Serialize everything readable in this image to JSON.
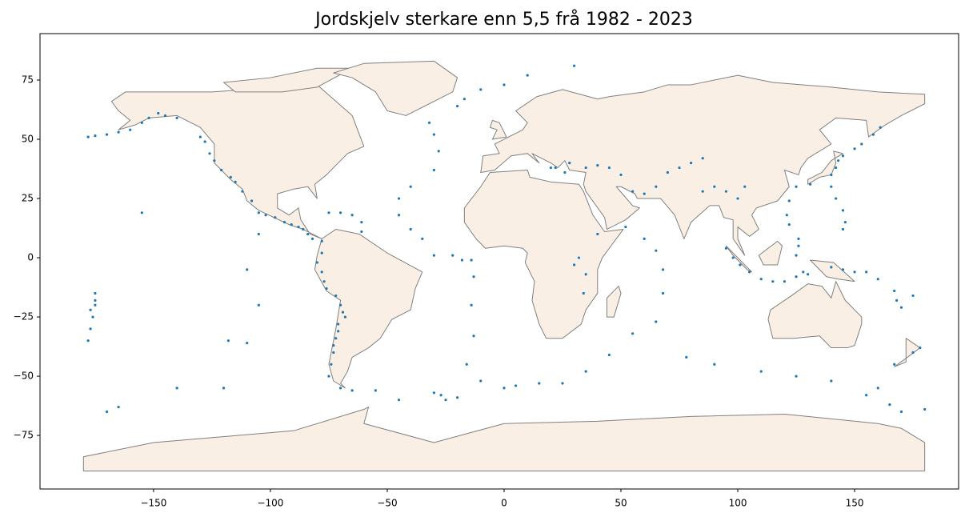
{
  "chart_data": {
    "type": "scatter",
    "title": "Jordskjelv sterkare enn 5,5 frå 1982 - 2023",
    "color": "#1f77b4",
    "xlim": [
      -198.6,
      194.5
    ],
    "ylim": [
      -97.6,
      94.6
    ],
    "xticks": [
      {
        "value": -150,
        "label": "−150"
      },
      {
        "value": -100,
        "label": "−100"
      },
      {
        "value": -50,
        "label": "−50"
      },
      0,
      50,
      100,
      150
    ],
    "yticks": [
      {
        "value": -75,
        "label": "−75"
      },
      {
        "value": -50,
        "label": "−50"
      },
      {
        "value": -25,
        "label": "−25"
      },
      0,
      25,
      50,
      75
    ],
    "x": [
      -178,
      -175,
      -170,
      -165,
      -160,
      -155,
      -152,
      -148,
      -145,
      -140,
      -130,
      -128,
      -126,
      -124,
      -121,
      -117,
      -115,
      -112,
      -108,
      -105,
      -102,
      -98,
      -94,
      -91,
      -88,
      -86,
      -84,
      -82,
      -78,
      -75,
      -70,
      -65,
      -61,
      -61,
      -78,
      -80,
      -78,
      -77,
      -76,
      -72,
      -70,
      -69,
      -68,
      -71,
      -71,
      -72,
      -73,
      -73,
      -74,
      -75,
      -70,
      -65,
      -55,
      -45,
      -30,
      -27,
      -25,
      -20,
      -18,
      -14,
      -22,
      -30,
      -13,
      -14,
      -13,
      -16,
      -10,
      0,
      5,
      -35,
      -40,
      -45,
      -45,
      -40,
      -30,
      -28,
      -30,
      -32,
      -20,
      -17,
      -10,
      0,
      10,
      30,
      15,
      25,
      35,
      45,
      55,
      65,
      78,
      90,
      110,
      125,
      140,
      155,
      165,
      180,
      68,
      68,
      65,
      60,
      52,
      20,
      22,
      26,
      28,
      35,
      40,
      45,
      50,
      55,
      60,
      65,
      70,
      75,
      80,
      85,
      90,
      95,
      100,
      103,
      85,
      30,
      35,
      34,
      32,
      40,
      95,
      98,
      101,
      105,
      110,
      115,
      120,
      125,
      128,
      130,
      125,
      126,
      126,
      122,
      121,
      122,
      125,
      131,
      140,
      142,
      143,
      145,
      150,
      153,
      158,
      161,
      140,
      142,
      145,
      146,
      145,
      140,
      145,
      150,
      155,
      160,
      167,
      168,
      170,
      175,
      -175,
      -175,
      -176,
      -177,
      -178,
      178,
      175,
      167,
      160,
      170,
      -170,
      -155,
      -140,
      -120,
      -110,
      -105,
      -110,
      -105,
      -118,
      -165,
      -175,
      -177
    ],
    "y": [
      51,
      51.5,
      52,
      53,
      54,
      57,
      59,
      61,
      60,
      59,
      51,
      49,
      44,
      41,
      37,
      34,
      32,
      28,
      24,
      19,
      18,
      17,
      15,
      14,
      13,
      12,
      10,
      8,
      7,
      19,
      19,
      18,
      15,
      11,
      2,
      -2,
      -6,
      -10,
      -13,
      -16,
      -20,
      -23,
      -25,
      -28,
      -31,
      -34,
      -37,
      -40,
      -45,
      -50,
      -55,
      -56,
      -56,
      -60,
      -57,
      -58,
      -60,
      -59,
      -1,
      -1,
      1,
      1,
      -8,
      -20,
      -33,
      -45,
      -52,
      -55,
      -54,
      8,
      12,
      18,
      25,
      30,
      37,
      45,
      52,
      57,
      64,
      67,
      71,
      73,
      77,
      81,
      -53,
      -53,
      -48,
      -41,
      -32,
      -27,
      -42,
      -45,
      -48,
      -50,
      -52,
      -58,
      -62,
      -64,
      -15,
      -5,
      3,
      8,
      13,
      38,
      38,
      36,
      40,
      38,
      39,
      38,
      35,
      28,
      27,
      30,
      36,
      38,
      40,
      42,
      30,
      28,
      25,
      30,
      28,
      -3,
      -7,
      -15,
      0,
      10,
      4,
      0,
      -3,
      -6,
      -9,
      -10,
      -10,
      -8,
      -6,
      -7,
      1,
      5,
      8,
      14,
      18,
      24,
      30,
      31,
      35,
      38,
      41,
      43,
      46,
      48,
      52,
      55,
      30,
      25,
      20,
      15,
      12,
      -4,
      -5,
      -6,
      -6,
      -9,
      -14,
      -18,
      -21,
      -16,
      -15,
      -20,
      -25,
      -30,
      -35,
      -38,
      -40,
      -45,
      -55,
      -65,
      -65,
      19,
      -55,
      -55,
      -36,
      -20,
      -5,
      10,
      -35,
      -63,
      -18,
      -22
    ]
  }
}
